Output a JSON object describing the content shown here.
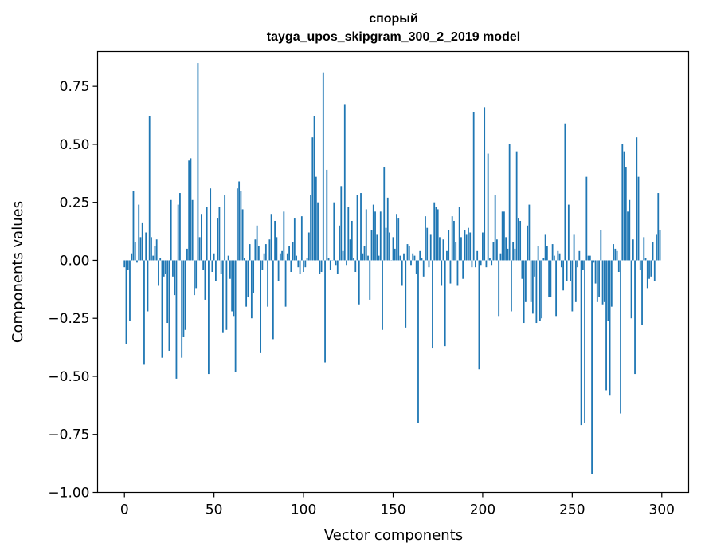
{
  "chart_data": {
    "type": "bar",
    "title_line1": "спорый",
    "title_line2": "tayga_upos_skipgram_300_2_2019 model",
    "xlabel": "Vector components",
    "ylabel": "Components values",
    "xlim": [
      -15,
      315
    ],
    "ylim": [
      -1.0,
      0.9
    ],
    "x_ticks": [
      0,
      50,
      100,
      150,
      200,
      250,
      300
    ],
    "x_tick_labels": [
      "0",
      "50",
      "100",
      "150",
      "200",
      "250",
      "300"
    ],
    "y_ticks": [
      0.75,
      0.5,
      0.25,
      0.0,
      -0.25,
      -0.5,
      -0.75,
      -1.0
    ],
    "y_tick_labels": [
      "0.75",
      "0.50",
      "0.25",
      "0.00",
      "−0.25",
      "−0.50",
      "−0.75",
      "−1.00"
    ],
    "bar_color": "#1f77b4",
    "grid": false,
    "values": [
      -0.03,
      -0.36,
      -0.04,
      -0.26,
      0.03,
      0.3,
      0.08,
      -0.01,
      0.24,
      0.1,
      0.16,
      -0.45,
      0.12,
      -0.22,
      0.62,
      0.1,
      0.02,
      0.06,
      0.09,
      -0.11,
      0.01,
      -0.42,
      -0.07,
      -0.06,
      -0.27,
      -0.39,
      0.26,
      -0.07,
      -0.15,
      -0.51,
      0.24,
      0.29,
      -0.42,
      -0.33,
      -0.3,
      0.05,
      0.43,
      0.44,
      0.26,
      -0.15,
      -0.12,
      0.85,
      0.1,
      0.2,
      -0.04,
      -0.17,
      0.23,
      -0.49,
      0.31,
      -0.05,
      0.03,
      -0.09,
      0.18,
      0.23,
      -0.06,
      -0.31,
      0.28,
      -0.3,
      0.02,
      -0.08,
      -0.22,
      -0.24,
      -0.48,
      0.31,
      0.34,
      0.3,
      0.22,
      0.01,
      -0.2,
      -0.16,
      0.07,
      -0.25,
      -0.14,
      0.09,
      0.15,
      0.06,
      -0.4,
      -0.04,
      0.03,
      0.07,
      -0.2,
      0.09,
      0.2,
      -0.34,
      0.17,
      0.1,
      -0.09,
      0.03,
      0.04,
      0.21,
      -0.2,
      0.03,
      0.06,
      -0.05,
      0.08,
      0.18,
      0.02,
      -0.03,
      -0.06,
      0.19,
      -0.05,
      -0.03,
      0.01,
      0.12,
      0.28,
      0.53,
      0.62,
      0.36,
      0.25,
      -0.06,
      -0.05,
      0.81,
      -0.44,
      0.39,
      0.01,
      -0.04,
      0.0,
      0.25,
      -0.02,
      -0.06,
      0.15,
      0.32,
      0.04,
      0.67,
      -0.02,
      0.23,
      0.09,
      0.17,
      0.01,
      -0.05,
      0.28,
      -0.19,
      0.29,
      0.03,
      0.06,
      0.22,
      0.02,
      -0.17,
      0.13,
      0.24,
      0.21,
      0.11,
      0.02,
      0.21,
      -0.3,
      0.4,
      0.14,
      0.27,
      0.12,
      0.0,
      0.1,
      0.05,
      0.2,
      0.18,
      0.02,
      -0.11,
      0.03,
      -0.29,
      0.07,
      0.06,
      -0.02,
      0.03,
      0.02,
      -0.06,
      -0.7,
      0.04,
      0.01,
      -0.07,
      0.19,
      0.14,
      -0.03,
      0.11,
      -0.38,
      0.25,
      0.23,
      0.22,
      0.1,
      -0.11,
      0.09,
      -0.37,
      0.04,
      0.13,
      -0.1,
      0.19,
      0.17,
      0.08,
      -0.11,
      0.23,
      0.1,
      -0.08,
      0.13,
      0.11,
      0.14,
      0.12,
      -0.03,
      0.64,
      -0.03,
      0.04,
      -0.47,
      -0.02,
      0.12,
      0.66,
      -0.03,
      0.46,
      0.01,
      -0.02,
      0.08,
      0.28,
      0.09,
      -0.24,
      0.03,
      0.21,
      0.21,
      0.1,
      0.05,
      0.5,
      -0.22,
      0.08,
      0.05,
      0.47,
      0.18,
      0.17,
      -0.08,
      -0.27,
      -0.18,
      0.15,
      0.24,
      -0.18,
      -0.23,
      -0.07,
      -0.27,
      0.06,
      -0.26,
      -0.25,
      0.01,
      0.11,
      0.06,
      -0.16,
      -0.16,
      0.07,
      0.02,
      -0.24,
      0.04,
      0.03,
      -0.03,
      -0.13,
      0.59,
      -0.09,
      0.24,
      -0.09,
      -0.22,
      0.11,
      -0.18,
      -0.03,
      0.04,
      -0.71,
      -0.04,
      -0.7,
      0.36,
      0.02,
      0.02,
      -0.92,
      -0.01,
      -0.1,
      -0.18,
      -0.16,
      0.13,
      -0.19,
      -0.18,
      -0.56,
      -0.26,
      -0.58,
      -0.2,
      0.07,
      0.05,
      0.04,
      -0.05,
      -0.66,
      0.5,
      0.47,
      0.4,
      0.21,
      0.26,
      -0.25,
      0.09,
      -0.49,
      0.53,
      0.36,
      -0.04,
      -0.28,
      0.1,
      0.01,
      -0.12,
      -0.08,
      -0.07,
      0.08,
      -0.09,
      0.11,
      0.29,
      0.13
    ]
  }
}
